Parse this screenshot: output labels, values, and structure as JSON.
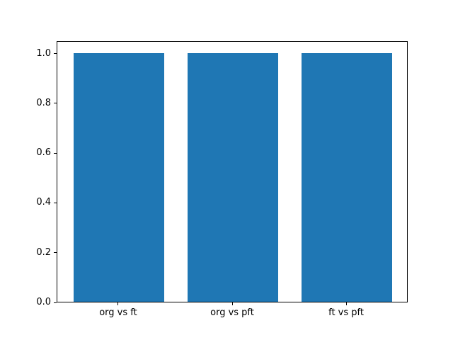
{
  "chart_data": {
    "type": "bar",
    "title": "",
    "xlabel": "",
    "ylabel": "",
    "categories": [
      "org vs ft",
      "org vs pft",
      "ft vs pft"
    ],
    "values": [
      1.0,
      1.0,
      1.0
    ],
    "bar_color": "#1f77b4",
    "ylim": [
      0,
      1.05
    ],
    "yticks": [
      0.0,
      0.2,
      0.4,
      0.6,
      0.8,
      1.0
    ],
    "ytick_labels": [
      "0.0",
      "0.2",
      "0.4",
      "0.6",
      "0.8",
      "1.0"
    ],
    "grid": false,
    "legend": null,
    "spines": "box",
    "background_color": "#ffffff",
    "axis_color": "#000000"
  }
}
